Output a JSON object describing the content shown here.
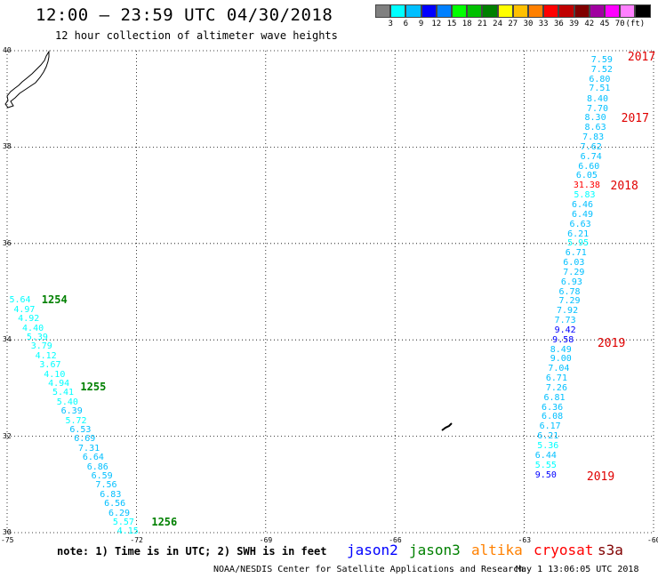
{
  "header": {
    "title": "12:00 – 23:59 UTC 04/30/2018",
    "subtitle": "12 hour collection of altimeter wave heights"
  },
  "colorbar": {
    "colors": [
      "#808080",
      "#00ffff",
      "#00bfff",
      "#0000ff",
      "#0080ff",
      "#00ff00",
      "#00c000",
      "#008000",
      "#ffff00",
      "#ffc000",
      "#ff8000",
      "#ff0000",
      "#c00000",
      "#800000",
      "#a000a0",
      "#ff00ff",
      "#ff80ff",
      "#000000"
    ],
    "labels": [
      "3",
      "6",
      "9",
      "12",
      "15",
      "18",
      "21",
      "24",
      "27",
      "30",
      "33",
      "36",
      "39",
      "42",
      "45",
      "70",
      "(ft)"
    ]
  },
  "axes": {
    "x_ticks": [
      -75,
      -72,
      -69,
      -66,
      -63,
      -60
    ],
    "x_tick_labels": [
      "-75",
      "-72",
      "-69",
      "-66",
      "-63",
      "-60"
    ],
    "y_ticks": [
      30,
      32,
      34,
      36,
      38,
      40
    ],
    "y_tick_labels": [
      "30",
      "32",
      "34",
      "36",
      "38",
      "40"
    ],
    "xlim": [
      -75,
      -60
    ],
    "ylim": [
      30,
      40
    ],
    "grid": true
  },
  "chart_data": {
    "type": "scatter",
    "east_track": [
      {
        "lon": -61.2,
        "lat": 39.8,
        "v": "7.59",
        "c": "#00bfff"
      },
      {
        "lon": -61.2,
        "lat": 39.6,
        "v": "7.52",
        "c": "#00bfff"
      },
      {
        "lon": -61.25,
        "lat": 39.4,
        "v": "6.80",
        "c": "#00bfff"
      },
      {
        "lon": -61.25,
        "lat": 39.2,
        "v": "7.51",
        "c": "#00bfff"
      },
      {
        "lon": -61.3,
        "lat": 38.99,
        "v": "8.40",
        "c": "#00bfff"
      },
      {
        "lon": -61.3,
        "lat": 38.79,
        "v": "7.70",
        "c": "#00bfff"
      },
      {
        "lon": -61.35,
        "lat": 38.59,
        "v": "8.30",
        "c": "#00bfff"
      },
      {
        "lon": -61.35,
        "lat": 38.39,
        "v": "8.63",
        "c": "#00bfff"
      },
      {
        "lon": -61.4,
        "lat": 38.19,
        "v": "7.83",
        "c": "#00bfff"
      },
      {
        "lon": -61.45,
        "lat": 37.99,
        "v": "7.62",
        "c": "#00bfff"
      },
      {
        "lon": -61.45,
        "lat": 37.79,
        "v": "6.74",
        "c": "#00bfff"
      },
      {
        "lon": -61.5,
        "lat": 37.59,
        "v": "6.60",
        "c": "#00bfff"
      },
      {
        "lon": -61.55,
        "lat": 37.39,
        "v": "6.05",
        "c": "#00bfff"
      },
      {
        "lon": -61.55,
        "lat": 37.19,
        "v": "31.38",
        "c": "#ff0000"
      },
      {
        "lon": -61.6,
        "lat": 36.99,
        "v": "5.83",
        "c": "#00ffff"
      },
      {
        "lon": -61.65,
        "lat": 36.79,
        "v": "6.46",
        "c": "#00bfff"
      },
      {
        "lon": -61.65,
        "lat": 36.59,
        "v": "6.49",
        "c": "#00bfff"
      },
      {
        "lon": -61.7,
        "lat": 36.39,
        "v": "6.63",
        "c": "#00bfff"
      },
      {
        "lon": -61.75,
        "lat": 36.19,
        "v": "6.21",
        "c": "#00bfff"
      },
      {
        "lon": -61.75,
        "lat": 35.99,
        "v": "5.95",
        "c": "#00ffff"
      },
      {
        "lon": -61.8,
        "lat": 35.79,
        "v": "6.71",
        "c": "#00bfff"
      },
      {
        "lon": -61.85,
        "lat": 35.59,
        "v": "6.03",
        "c": "#00bfff"
      },
      {
        "lon": -61.85,
        "lat": 35.39,
        "v": "7.29",
        "c": "#00bfff"
      },
      {
        "lon": -61.9,
        "lat": 35.19,
        "v": "6.93",
        "c": "#00bfff"
      },
      {
        "lon": -61.95,
        "lat": 34.99,
        "v": "6.78",
        "c": "#00bfff"
      },
      {
        "lon": -61.95,
        "lat": 34.79,
        "v": "7.29",
        "c": "#00bfff"
      },
      {
        "lon": -62.0,
        "lat": 34.59,
        "v": "7.92",
        "c": "#00bfff"
      },
      {
        "lon": -62.05,
        "lat": 34.39,
        "v": "7.73",
        "c": "#00bfff"
      },
      {
        "lon": -62.05,
        "lat": 34.19,
        "v": "9.42",
        "c": "#0000ff"
      },
      {
        "lon": -62.1,
        "lat": 33.99,
        "v": "9.58",
        "c": "#0000ff"
      },
      {
        "lon": -62.15,
        "lat": 33.79,
        "v": "8.49",
        "c": "#00bfff"
      },
      {
        "lon": -62.15,
        "lat": 33.59,
        "v": "9.00",
        "c": "#00bfff"
      },
      {
        "lon": -62.2,
        "lat": 33.39,
        "v": "7.04",
        "c": "#00bfff"
      },
      {
        "lon": -62.25,
        "lat": 33.19,
        "v": "6.71",
        "c": "#00bfff"
      },
      {
        "lon": -62.25,
        "lat": 32.99,
        "v": "7.26",
        "c": "#00bfff"
      },
      {
        "lon": -62.3,
        "lat": 32.79,
        "v": "6.81",
        "c": "#00bfff"
      },
      {
        "lon": -62.35,
        "lat": 32.59,
        "v": "6.36",
        "c": "#00bfff"
      },
      {
        "lon": -62.35,
        "lat": 32.39,
        "v": "6.08",
        "c": "#00bfff"
      },
      {
        "lon": -62.4,
        "lat": 32.19,
        "v": "6.17",
        "c": "#00bfff"
      },
      {
        "lon": -62.45,
        "lat": 31.99,
        "v": "6.21",
        "c": "#00bfff"
      },
      {
        "lon": -62.45,
        "lat": 31.79,
        "v": "5.36",
        "c": "#00ffff"
      },
      {
        "lon": -62.5,
        "lat": 31.59,
        "v": "6.44",
        "c": "#00bfff"
      },
      {
        "lon": -62.5,
        "lat": 31.39,
        "v": "5.55",
        "c": "#00ffff"
      },
      {
        "lon": -62.5,
        "lat": 31.19,
        "v": "9.50",
        "c": "#0000ff"
      }
    ],
    "west_track": [
      {
        "lon": -74.7,
        "lat": 34.81,
        "v": "5.64",
        "c": "#00ffff"
      },
      {
        "lon": -74.6,
        "lat": 34.62,
        "v": "4.97",
        "c": "#00ffff"
      },
      {
        "lon": -74.5,
        "lat": 34.43,
        "v": "4.92",
        "c": "#00ffff"
      },
      {
        "lon": -74.4,
        "lat": 34.23,
        "v": "4.40",
        "c": "#00ffff"
      },
      {
        "lon": -74.3,
        "lat": 34.04,
        "v": "5.39",
        "c": "#00ffff"
      },
      {
        "lon": -74.2,
        "lat": 33.85,
        "v": "3.79",
        "c": "#00ffff"
      },
      {
        "lon": -74.1,
        "lat": 33.66,
        "v": "4.12",
        "c": "#00ffff"
      },
      {
        "lon": -74.0,
        "lat": 33.47,
        "v": "3.67",
        "c": "#00ffff"
      },
      {
        "lon": -73.9,
        "lat": 33.27,
        "v": "4.10",
        "c": "#00ffff"
      },
      {
        "lon": -73.8,
        "lat": 33.08,
        "v": "4.94",
        "c": "#00ffff"
      },
      {
        "lon": -73.7,
        "lat": 32.89,
        "v": "5.41",
        "c": "#00ffff"
      },
      {
        "lon": -73.6,
        "lat": 32.7,
        "v": "5.40",
        "c": "#00ffff"
      },
      {
        "lon": -73.5,
        "lat": 32.51,
        "v": "6.39",
        "c": "#00bfff"
      },
      {
        "lon": -73.4,
        "lat": 32.31,
        "v": "5.72",
        "c": "#00ffff"
      },
      {
        "lon": -73.3,
        "lat": 32.12,
        "v": "6.53",
        "c": "#00bfff"
      },
      {
        "lon": -73.2,
        "lat": 31.93,
        "v": "6.69",
        "c": "#00bfff"
      },
      {
        "lon": -73.1,
        "lat": 31.74,
        "v": "7.31",
        "c": "#00bfff"
      },
      {
        "lon": -73.0,
        "lat": 31.55,
        "v": "6.64",
        "c": "#00bfff"
      },
      {
        "lon": -72.9,
        "lat": 31.35,
        "v": "6.86",
        "c": "#00bfff"
      },
      {
        "lon": -72.8,
        "lat": 31.16,
        "v": "6.59",
        "c": "#00bfff"
      },
      {
        "lon": -72.7,
        "lat": 30.97,
        "v": "7.56",
        "c": "#00bfff"
      },
      {
        "lon": -72.6,
        "lat": 30.78,
        "v": "6.83",
        "c": "#00bfff"
      },
      {
        "lon": -72.5,
        "lat": 30.59,
        "v": "6.56",
        "c": "#00bfff"
      },
      {
        "lon": -72.4,
        "lat": 30.39,
        "v": "6.29",
        "c": "#00bfff"
      },
      {
        "lon": -72.3,
        "lat": 30.2,
        "v": "5.57",
        "c": "#00ffff"
      },
      {
        "lon": -72.2,
        "lat": 30.01,
        "v": "4.15",
        "c": "#00ffff"
      }
    ]
  },
  "pass_labels": [
    {
      "lon": -74.2,
      "lat": 34.81,
      "text": "1254",
      "c": "#008000"
    },
    {
      "lon": -73.3,
      "lat": 33.0,
      "text": "1255",
      "c": "#008000"
    },
    {
      "lon": -71.65,
      "lat": 30.2,
      "text": "1256",
      "c": "#008000"
    }
  ],
  "year_labels": [
    {
      "lon": -60.6,
      "lat": 39.85,
      "text": "2017"
    },
    {
      "lon": -60.75,
      "lat": 38.58,
      "text": "2017"
    },
    {
      "lon": -61.0,
      "lat": 37.18,
      "text": "2018"
    },
    {
      "lon": -61.3,
      "lat": 33.92,
      "text": "2019"
    },
    {
      "lon": -61.55,
      "lat": 31.15,
      "text": "2019"
    }
  ],
  "footer": {
    "note": "note:  1) Time is in UTC;  2) SWH is in feet",
    "satellites": [
      {
        "name": "jason2",
        "color": "#0000ff"
      },
      {
        "name": "jason3",
        "color": "#008000"
      },
      {
        "name": "altika",
        "color": "#ff8000"
      },
      {
        "name": "cryosat",
        "color": "#ff0000"
      },
      {
        "name": "s3a",
        "color": "#800000"
      }
    ],
    "credit": "NOAA/NESDIS Center for Satellite Applications and Research",
    "timestamp": "May  1 13:06:05 UTC 2018"
  }
}
